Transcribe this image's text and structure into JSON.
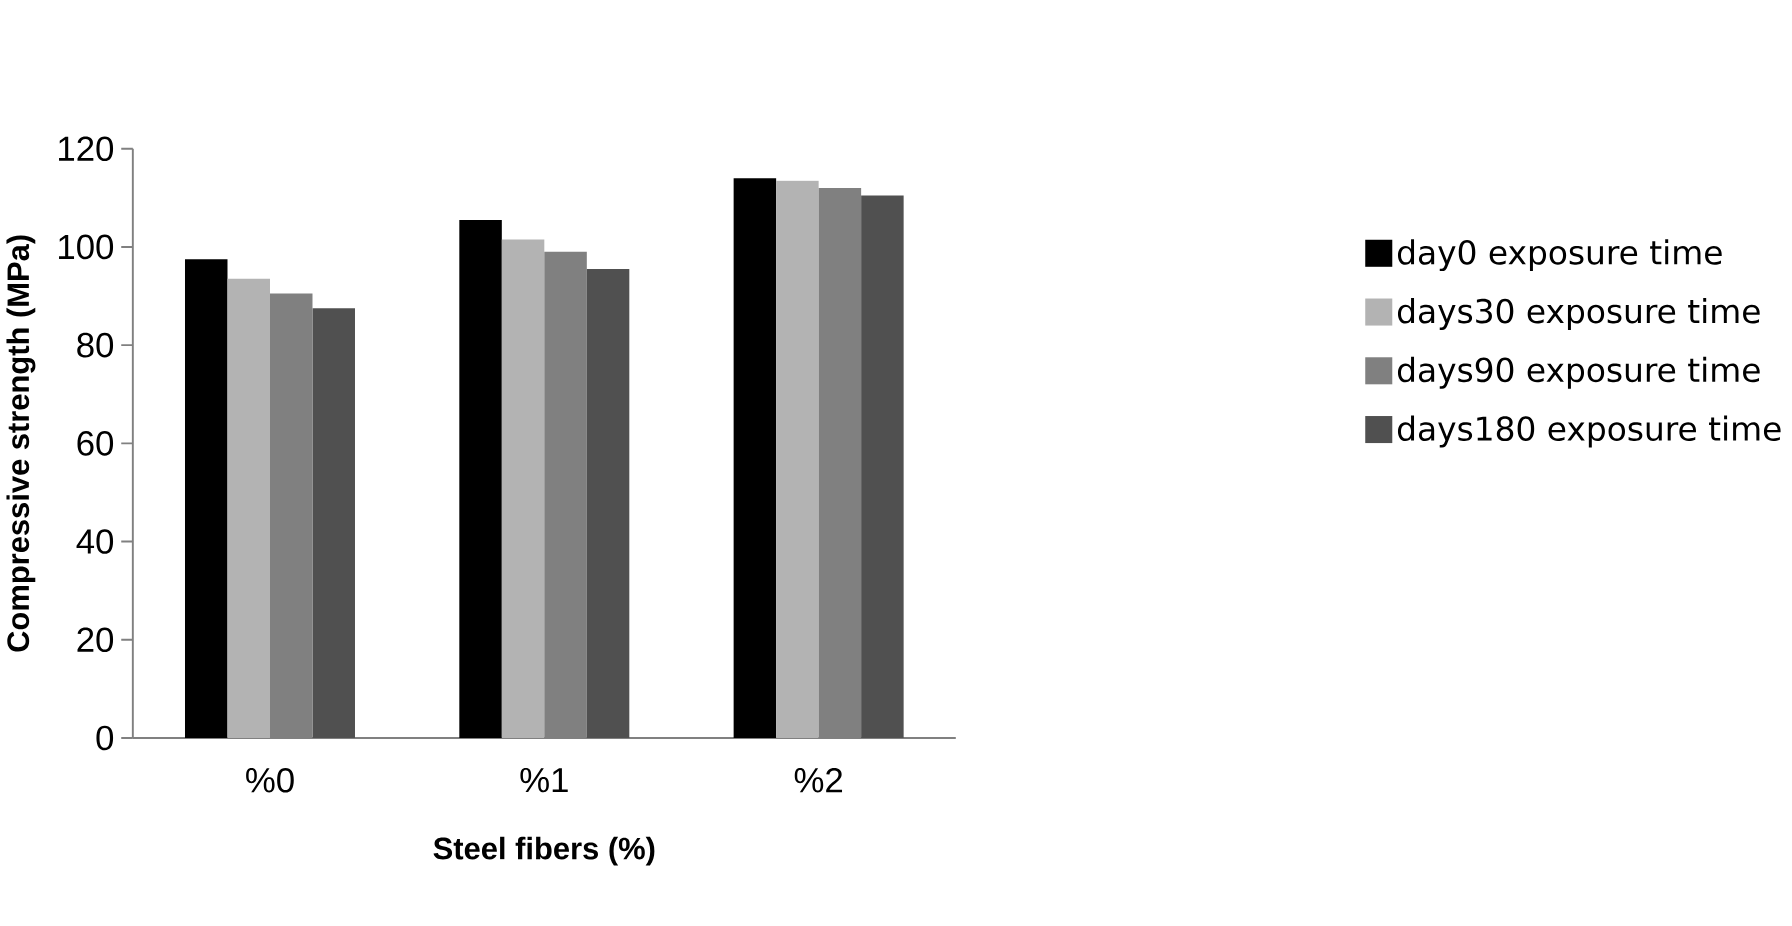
{
  "chart_data": {
    "type": "bar",
    "xlabel": "Steel fibers (%)",
    "ylabel": "Compressive strength (MPa)",
    "categories": [
      "%0",
      "%1",
      "%2"
    ],
    "series": [
      {
        "name": "day0 exposure time",
        "color": "#000000",
        "values": [
          97.5,
          105.5,
          114
        ]
      },
      {
        "name": "days30 exposure time",
        "color": "#b3b3b3",
        "values": [
          93.5,
          101.5,
          113.5
        ]
      },
      {
        "name": "days90 exposure time",
        "color": "#808080",
        "values": [
          90.5,
          99,
          112
        ]
      },
      {
        "name": "days180 exposure time",
        "color": "#505050",
        "values": [
          87.5,
          95.5,
          110.5
        ]
      }
    ],
    "ylim": [
      0,
      120
    ],
    "yticks": [
      0,
      20,
      40,
      60,
      80,
      100,
      120
    ],
    "grid": false,
    "legend": "right"
  }
}
